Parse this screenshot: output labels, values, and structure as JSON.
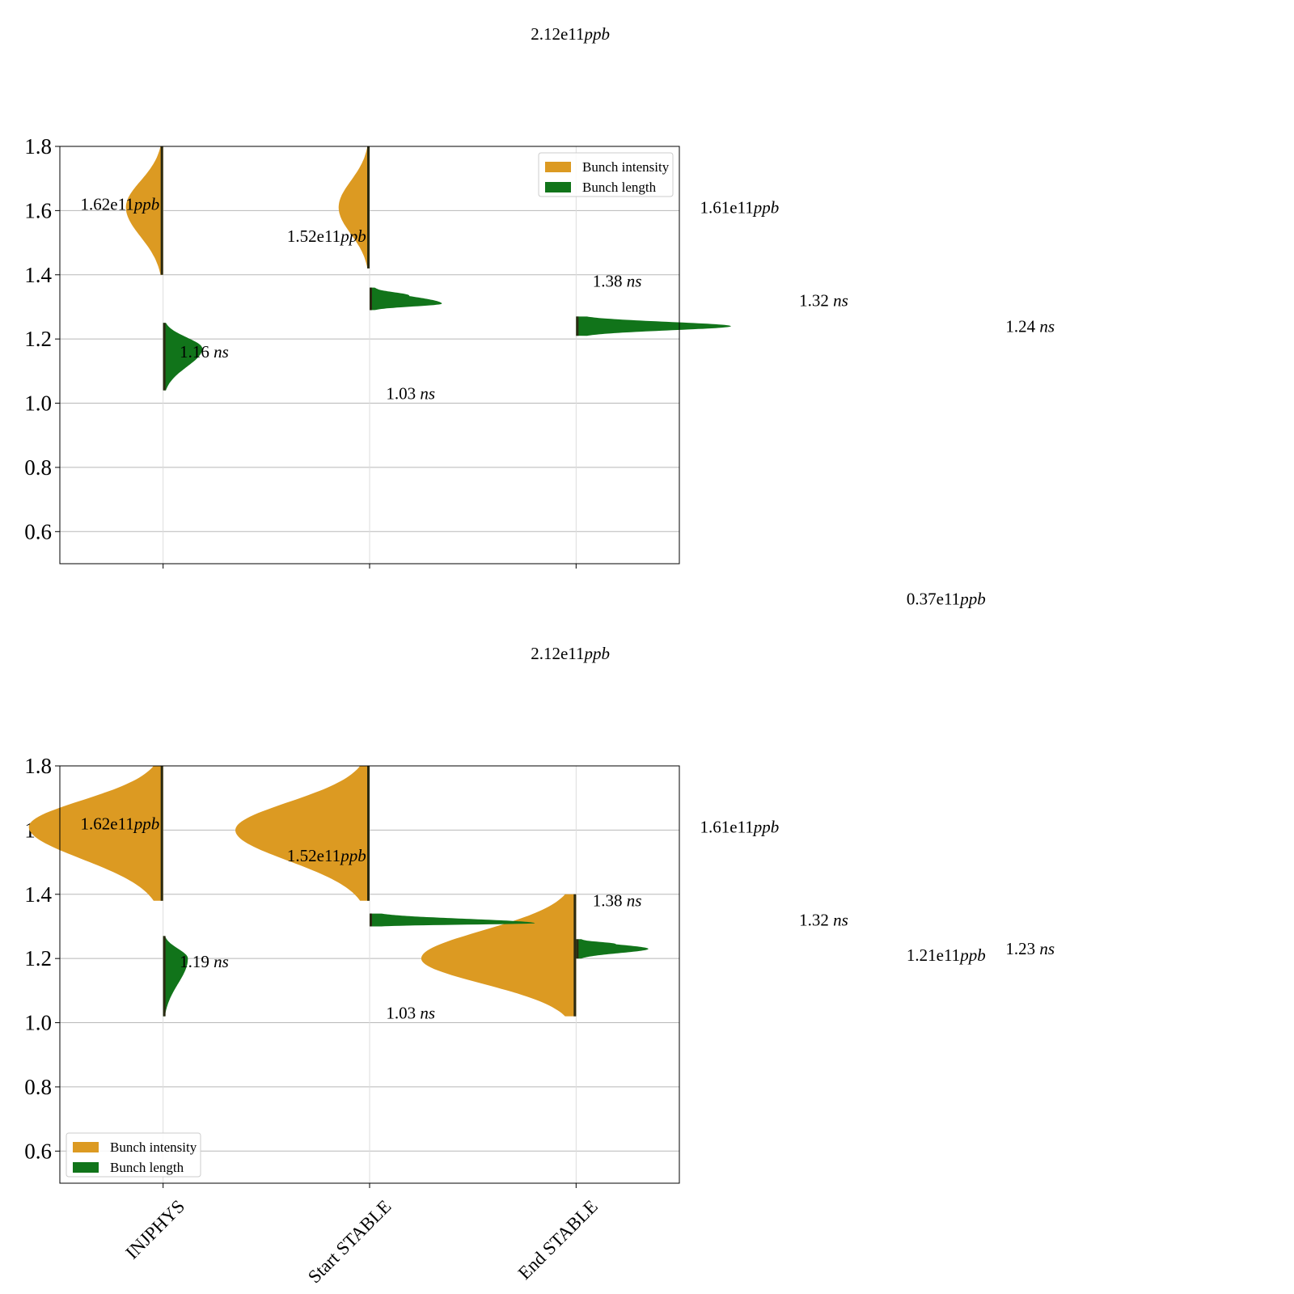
{
  "colors": {
    "intensity": "#dc9a22",
    "length": "#11741a",
    "rug": "#2a2a12",
    "grid": "#b8b8b8",
    "axis": "#000000"
  },
  "chart_data": [
    {
      "type": "violin",
      "split": true,
      "categories": [
        "INJPHYS",
        "Start STABLE",
        "End STABLE"
      ],
      "show_xtick_labels": false,
      "ylim": [
        0.5,
        1.8
      ],
      "yticks": [
        "0.6",
        "0.8",
        "1.0",
        "1.2",
        "1.4",
        "1.6",
        "1.8"
      ],
      "grid": "horizontal",
      "legend": {
        "placement": "upper right",
        "entries": [
          "Bunch intensity",
          "Bunch length"
        ]
      },
      "series": [
        {
          "name": "Bunch intensity",
          "side": "left",
          "violins": [
            {
              "category": "INJPHYS",
              "mode": 1.61,
              "min": 1.4,
              "max": 1.8,
              "width": 0.36
            },
            {
              "category": "Start STABLE",
              "mode": 1.61,
              "min": 1.42,
              "max": 1.8,
              "width": 0.3
            },
            null
          ]
        },
        {
          "name": "Bunch length",
          "side": "right",
          "violins": [
            {
              "category": "INJPHYS",
              "mode": 1.17,
              "min": 1.04,
              "max": 1.25,
              "width": 0.38
            },
            {
              "category": "Start STABLE",
              "mode": 1.31,
              "min": 1.29,
              "max": 1.36,
              "width": 0.7,
              "tail": 1.335
            },
            {
              "category": "End STABLE",
              "mode": 1.24,
              "min": 1.21,
              "max": 1.27,
              "width": 1.5
            }
          ]
        }
      ],
      "annotations": [
        {
          "text": "2.12e11",
          "unit": "ppb",
          "x": 1.78,
          "y": 2.15
        },
        {
          "text": "1.62e11",
          "unit": "ppb",
          "x": -0.4,
          "y": 1.62
        },
        {
          "text": "1.52e11",
          "unit": "ppb",
          "x": 0.6,
          "y": 1.52
        },
        {
          "text": "1.61e11",
          "unit": "ppb",
          "x": 2.6,
          "y": 1.61
        },
        {
          "text": "0.37e11",
          "unit": "ppb",
          "x": 3.6,
          "y": 0.39
        },
        {
          "text": "1.16",
          "unit": "ns",
          "x": 0.08,
          "y": 1.16
        },
        {
          "text": "1.03",
          "unit": "ns",
          "x": 1.08,
          "y": 1.03
        },
        {
          "text": "1.38",
          "unit": "ns",
          "x": 2.08,
          "y": 1.38
        },
        {
          "text": "1.32",
          "unit": "ns",
          "x": 3.08,
          "y": 1.32
        },
        {
          "text": "1.24",
          "unit": "ns",
          "x": 4.08,
          "y": 1.24
        }
      ]
    },
    {
      "type": "violin",
      "split": true,
      "categories": [
        "INJPHYS",
        "Start STABLE",
        "End STABLE"
      ],
      "show_xtick_labels": true,
      "ylim": [
        0.5,
        1.8
      ],
      "yticks": [
        "0.6",
        "0.8",
        "1.0",
        "1.2",
        "1.4",
        "1.6",
        "1.8"
      ],
      "grid": "horizontal",
      "legend": {
        "placement": "lower left",
        "entries": [
          "Bunch intensity",
          "Bunch length"
        ]
      },
      "series": [
        {
          "name": "Bunch intensity",
          "side": "left",
          "violins": [
            {
              "category": "INJPHYS",
              "mode": 1.61,
              "min": 1.38,
              "max": 1.8,
              "width": 1.3
            },
            {
              "category": "Start STABLE",
              "mode": 1.6,
              "min": 1.38,
              "max": 1.8,
              "width": 1.3
            },
            {
              "category": "End STABLE",
              "mode": 1.2,
              "min": 1.02,
              "max": 1.4,
              "width": 1.5
            }
          ]
        },
        {
          "name": "Bunch length",
          "side": "right",
          "violins": [
            {
              "category": "INJPHYS",
              "mode": 1.2,
              "min": 1.02,
              "max": 1.27,
              "width": 0.24
            },
            {
              "category": "Start STABLE",
              "mode": 1.31,
              "min": 1.3,
              "max": 1.34,
              "width": 1.6
            },
            {
              "category": "End STABLE",
              "mode": 1.23,
              "min": 1.2,
              "max": 1.26,
              "width": 0.7,
              "tail": 1.245
            }
          ]
        }
      ],
      "annotations": [
        {
          "text": "2.12e11",
          "unit": "ppb",
          "x": 1.78,
          "y": 2.15
        },
        {
          "text": "1.62e11",
          "unit": "ppb",
          "x": -0.4,
          "y": 1.62
        },
        {
          "text": "1.52e11",
          "unit": "ppb",
          "x": 0.6,
          "y": 1.52
        },
        {
          "text": "1.61e11",
          "unit": "ppb",
          "x": 2.6,
          "y": 1.61
        },
        {
          "text": "1.21e11",
          "unit": "ppb",
          "x": 3.6,
          "y": 1.21
        },
        {
          "text": "1.19",
          "unit": "ns",
          "x": 0.08,
          "y": 1.19
        },
        {
          "text": "1.03",
          "unit": "ns",
          "x": 1.08,
          "y": 1.03
        },
        {
          "text": "1.38",
          "unit": "ns",
          "x": 2.08,
          "y": 1.38
        },
        {
          "text": "1.32",
          "unit": "ns",
          "x": 3.08,
          "y": 1.32
        },
        {
          "text": "1.23",
          "unit": "ns",
          "x": 4.08,
          "y": 1.23
        }
      ]
    }
  ]
}
